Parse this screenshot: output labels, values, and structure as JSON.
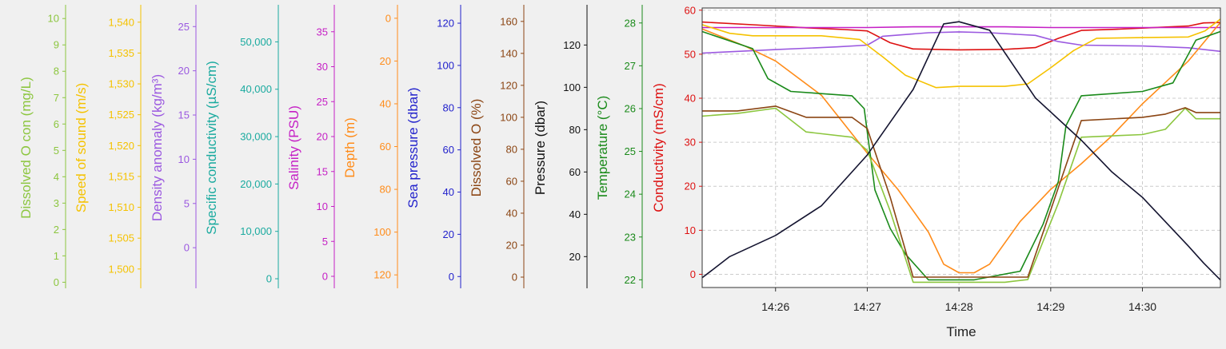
{
  "chart_data": {
    "type": "line",
    "xlabel": "Time",
    "x_ticks": [
      "14:26",
      "14:27",
      "14:28",
      "14:29",
      "14:30"
    ],
    "x_range": [
      "14:25:12",
      "14:30:51"
    ],
    "grid": true,
    "axes": [
      {
        "id": "do_con",
        "label": "Dissolved O con (mg/L)",
        "color": "#8cc63f",
        "range": [
          -0.2,
          10.4
        ],
        "ticks": [
          0,
          1,
          2,
          3,
          4,
          5,
          6,
          7,
          8,
          9,
          10
        ],
        "tick_labels": [
          "0",
          "1",
          "2",
          "3",
          "4",
          "5",
          "6",
          "7",
          "8",
          "9",
          "10"
        ]
      },
      {
        "id": "sos",
        "label": "Speed of sound (m/s)",
        "color": "#f5c200",
        "range": [
          1497.0,
          1542.3
        ],
        "ticks": [
          1500,
          1505,
          1510,
          1515,
          1520,
          1525,
          1530,
          1535,
          1540
        ],
        "tick_labels": [
          "1,500",
          "1,505",
          "1,510",
          "1,515",
          "1,520",
          "1,525",
          "1,530",
          "1,535",
          "1,540"
        ]
      },
      {
        "id": "density",
        "label": "Density anomaly (kg/m³)",
        "color": "#9b59e0",
        "range": [
          -4.5,
          27.1
        ],
        "ticks": [
          0,
          5,
          10,
          15,
          20,
          25
        ],
        "tick_labels": [
          "0",
          "5",
          "10",
          "15",
          "20",
          "25"
        ]
      },
      {
        "id": "spcond",
        "label": "Specific conductivity (µS/cm)",
        "color": "#1aaa9f",
        "range": [
          -1850,
          57150
        ],
        "ticks": [
          0,
          10000,
          20000,
          30000,
          40000,
          50000
        ],
        "tick_labels": [
          "0",
          "10,000",
          "20,000",
          "30,000",
          "40,000",
          "50,000"
        ]
      },
      {
        "id": "salinity",
        "label": "Salinity (PSU)",
        "color": "#c51fc5",
        "range": [
          -1.6,
          38.4
        ],
        "ticks": [
          0,
          5,
          10,
          15,
          20,
          25,
          30,
          35
        ],
        "tick_labels": [
          "0",
          "5",
          "10",
          "15",
          "20",
          "25",
          "30",
          "35"
        ]
      },
      {
        "id": "depth",
        "label": "Depth (m)",
        "color": "#ff8c1a",
        "range": [
          -4.8,
          125.9
        ],
        "inverted": true,
        "ticks": [
          0,
          20,
          40,
          60,
          80,
          100,
          120
        ],
        "tick_labels": [
          "0",
          "20",
          "40",
          "60",
          "80",
          "100",
          "120"
        ]
      },
      {
        "id": "seapress",
        "label": "Sea pressure (dbar)",
        "color": "#2222cc",
        "range": [
          -5.2,
          127.2
        ],
        "ticks": [
          0,
          20,
          40,
          60,
          80,
          100,
          120
        ],
        "tick_labels": [
          "0",
          "20",
          "40",
          "60",
          "80",
          "100",
          "120"
        ]
      },
      {
        "id": "do_pct",
        "label": "Dissolved O (%)",
        "color": "#8b4513",
        "range": [
          -6.5,
          168.4
        ],
        "ticks": [
          0,
          20,
          40,
          60,
          80,
          100,
          120,
          140,
          160
        ],
        "tick_labels": [
          "0",
          "20",
          "40",
          "60",
          "80",
          "100",
          "120",
          "140",
          "160"
        ]
      },
      {
        "id": "pressure",
        "label": "Pressure (dbar)",
        "color": "#111111",
        "range": [
          5.4,
          137.5
        ],
        "ticks": [
          20,
          40,
          60,
          80,
          100,
          120
        ],
        "tick_labels": [
          "20",
          "40",
          "60",
          "80",
          "100",
          "120"
        ]
      },
      {
        "id": "temp",
        "label": "Temperature (°C)",
        "color": "#1a8a1a",
        "range": [
          21.82,
          28.35
        ],
        "ticks": [
          22,
          23,
          24,
          25,
          26,
          27,
          28
        ],
        "tick_labels": [
          "22",
          "23",
          "24",
          "25",
          "26",
          "27",
          "28"
        ]
      },
      {
        "id": "cond",
        "label": "Conductivity (mS/cm)",
        "color": "#dd1111",
        "range": [
          -3.0,
          60.5
        ],
        "ticks": [
          0,
          10,
          20,
          30,
          40,
          50,
          60
        ],
        "tick_labels": [
          "0",
          "10",
          "20",
          "30",
          "40",
          "50",
          "60"
        ]
      }
    ],
    "series": [
      {
        "axis": "cond",
        "color": "#dd1111",
        "x": [
          "14:25:12",
          "14:25:50",
          "14:26:20",
          "14:26:45",
          "14:27:00",
          "14:27:15",
          "14:27:30",
          "14:28:00",
          "14:28:30",
          "14:28:50",
          "14:29:05",
          "14:29:20",
          "14:29:45",
          "14:30:10",
          "14:30:30",
          "14:30:40",
          "14:30:51"
        ],
        "values": [
          57.3,
          56.6,
          56.0,
          55.6,
          55.3,
          52.6,
          51.2,
          51.0,
          51.1,
          51.5,
          53.6,
          55.4,
          55.7,
          56.1,
          56.4,
          57.1,
          57.2
        ]
      },
      {
        "axis": "density",
        "color": "#9b59e0",
        "x": [
          "14:25:12",
          "14:26:00",
          "14:26:40",
          "14:27:00",
          "14:27:10",
          "14:27:40",
          "14:28:00",
          "14:28:20",
          "14:28:50",
          "14:29:05",
          "14:29:20",
          "14:30:00",
          "14:30:30",
          "14:30:51"
        ],
        "values": [
          22.0,
          22.4,
          22.7,
          22.9,
          23.9,
          24.3,
          24.4,
          24.3,
          24.0,
          23.3,
          22.9,
          22.8,
          22.6,
          22.2
        ]
      },
      {
        "axis": "salinity",
        "color": "#c51fc5",
        "x": [
          "14:25:12",
          "14:26:00",
          "14:27:00",
          "14:27:30",
          "14:28:00",
          "14:28:30",
          "14:29:00",
          "14:30:00",
          "14:30:51"
        ],
        "values": [
          35.6,
          35.6,
          35.6,
          35.7,
          35.7,
          35.7,
          35.6,
          35.6,
          35.6
        ]
      },
      {
        "axis": "sos",
        "color": "#f5c200",
        "x": [
          "14:25:12",
          "14:25:30",
          "14:25:45",
          "14:26:30",
          "14:26:55",
          "14:27:10",
          "14:27:25",
          "14:27:45",
          "14:28:00",
          "14:28:30",
          "14:28:45",
          "14:29:00",
          "14:29:15",
          "14:29:30",
          "14:30:00",
          "14:30:30",
          "14:30:41",
          "14:30:51"
        ],
        "values": [
          1539.6,
          1538.2,
          1537.8,
          1537.8,
          1537.2,
          1534.4,
          1531.4,
          1529.4,
          1529.6,
          1529.6,
          1530.0,
          1532.6,
          1535.4,
          1537.4,
          1537.5,
          1537.6,
          1538.6,
          1540.5
        ]
      },
      {
        "axis": "depth",
        "color": "#ff8c1a",
        "x": [
          "14:25:12",
          "14:25:40",
          "14:26:00",
          "14:26:30",
          "14:27:00",
          "14:27:20",
          "14:27:40",
          "14:27:50",
          "14:28:00",
          "14:28:10",
          "14:28:20",
          "14:28:40",
          "14:29:00",
          "14:29:20",
          "14:29:40",
          "14:30:00",
          "14:30:30",
          "14:30:51"
        ],
        "values": [
          5,
          13,
          20,
          36,
          63,
          80,
          100,
          115,
          119,
          119,
          115,
          95,
          80,
          68,
          55,
          40,
          20,
          2
        ]
      },
      {
        "axis": "temp",
        "color": "#1a8a1a",
        "x": [
          "14:25:12",
          "14:25:45",
          "14:25:55",
          "14:26:10",
          "14:26:50",
          "14:26:58",
          "14:27:05",
          "14:27:15",
          "14:27:25",
          "14:27:40",
          "14:28:10",
          "14:28:40",
          "14:28:55",
          "14:29:05",
          "14:29:10",
          "14:29:20",
          "14:30:00",
          "14:30:20",
          "14:30:35",
          "14:30:51"
        ],
        "values": [
          27.8,
          27.4,
          26.7,
          26.4,
          26.3,
          26.0,
          24.1,
          23.2,
          22.6,
          22.0,
          22.0,
          22.2,
          23.3,
          24.3,
          25.6,
          26.3,
          26.4,
          26.6,
          27.6,
          27.8
        ]
      },
      {
        "axis": "do_con",
        "color": "#8cc63f",
        "x": [
          "14:25:12",
          "14:25:35",
          "14:26:00",
          "14:26:20",
          "14:26:50",
          "14:27:00",
          "14:27:15",
          "14:27:30",
          "14:28:30",
          "14:28:45",
          "14:29:05",
          "14:29:20",
          "14:30:00",
          "14:30:15",
          "14:30:28",
          "14:30:35",
          "14:30:51"
        ],
        "values": [
          6.3,
          6.4,
          6.6,
          5.7,
          5.5,
          5.0,
          2.7,
          0.0,
          0.0,
          0.1,
          3.0,
          5.5,
          5.6,
          5.8,
          6.6,
          6.2,
          6.2
        ]
      },
      {
        "axis": "do_pct",
        "color": "#8b4513",
        "x": [
          "14:25:12",
          "14:25:35",
          "14:26:00",
          "14:26:20",
          "14:26:50",
          "14:27:00",
          "14:27:15",
          "14:27:30",
          "14:28:30",
          "14:28:45",
          "14:29:05",
          "14:29:20",
          "14:30:00",
          "14:30:15",
          "14:30:28",
          "14:30:35",
          "14:30:51"
        ],
        "values": [
          104,
          104,
          107,
          100,
          100,
          93,
          50,
          0,
          0,
          0,
          56,
          98,
          100,
          102,
          106,
          103,
          103
        ]
      },
      {
        "axis": "pressure",
        "color": "#141430",
        "x": [
          "14:25:12",
          "14:25:30",
          "14:26:00",
          "14:26:30",
          "14:27:00",
          "14:27:30",
          "14:27:50",
          "14:28:00",
          "14:28:20",
          "14:28:50",
          "14:29:20",
          "14:29:40",
          "14:30:00",
          "14:30:30",
          "14:30:40",
          "14:30:51"
        ],
        "values": [
          10,
          20,
          30,
          44,
          68,
          99,
          130,
          131,
          127,
          95,
          75,
          60,
          48,
          25,
          17,
          9
        ]
      }
    ]
  }
}
